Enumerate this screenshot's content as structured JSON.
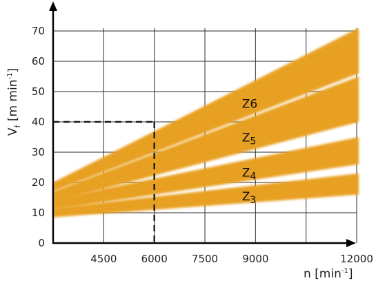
{
  "chart_data": {
    "type": "area",
    "title": "",
    "xlabel": {
      "main": "n [min",
      "sup": "-1",
      "tail": "]"
    },
    "ylabel": {
      "main": "V",
      "sub": "f",
      "rest": " [m min",
      "sup": "-1",
      "tail": "]"
    },
    "xlim": [
      3000,
      12000
    ],
    "ylim": [
      0,
      70
    ],
    "x_ticks": [
      4500,
      6000,
      7500,
      9000,
      12000
    ],
    "x_tick_labels": [
      "4500",
      "6000",
      "7500",
      "9000",
      "12000"
    ],
    "x_gridlines": [
      4500,
      6000,
      7500,
      9000,
      10500,
      12000
    ],
    "y_ticks": [
      0,
      10,
      20,
      30,
      40,
      50,
      60,
      70
    ],
    "y_tick_labels": [
      "0",
      "10",
      "20",
      "30",
      "40",
      "50",
      "60",
      "70"
    ],
    "grid": true,
    "band_color": "#e8a020",
    "series": [
      {
        "name": "Z3",
        "label": {
          "main": "Z",
          "sub": "3"
        },
        "x": [
          3000,
          12000
        ],
        "lower": [
          8.5,
          16
        ],
        "upper": [
          11.5,
          23
        ]
      },
      {
        "name": "Z4",
        "label": {
          "main": "Z",
          "sub": "4"
        },
        "x": [
          3000,
          12000
        ],
        "lower": [
          11,
          26
        ],
        "upper": [
          14.5,
          35
        ]
      },
      {
        "name": "Z5",
        "label": {
          "main": "Z",
          "sub": "5"
        },
        "x": [
          3000,
          12000
        ],
        "lower": [
          13.5,
          40
        ],
        "upper": [
          17,
          55
        ]
      },
      {
        "name": "Z6",
        "label": {
          "main": "Z6",
          "sub": ""
        },
        "x": [
          3000,
          12000
        ],
        "lower": [
          17,
          56
        ],
        "upper": [
          20,
          71
        ]
      }
    ],
    "annotations": [
      {
        "type": "dashed-guide",
        "x": 6000,
        "y": 40
      }
    ]
  }
}
